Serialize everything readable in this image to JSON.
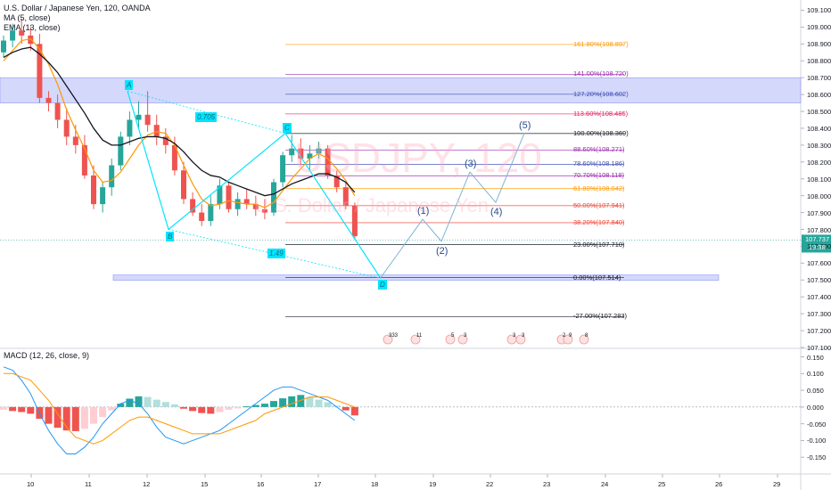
{
  "header": {
    "title": "U.S. Dollar / Japanese Yen, 120, OANDA",
    "ma": "MA (5, close)",
    "ema": "EMA (13, close)",
    "macd": "MACD (12, 26, close, 9)"
  },
  "watermark": {
    "symbol": "USDJPY, 120",
    "desc": "U.S. Dollar / Japanese Yen"
  },
  "colors": {
    "up": "#26a69a",
    "down": "#ef5350",
    "ma": "#ff9800",
    "ema": "#131722",
    "pattern": "#00e5ff",
    "projection": "#7fb3d5",
    "zone": "#b0b8f7",
    "macd_line": "#2196f3",
    "signal_line": "#ff9800"
  },
  "chart_data": [
    {
      "type": "candlestick",
      "y_axis": {
        "min": 107.1,
        "max": 109.15,
        "ticks": [
          "109.100",
          "109.000",
          "108.900",
          "108.800",
          "108.700",
          "108.600",
          "108.500",
          "108.400",
          "108.300",
          "108.200",
          "108.100",
          "108.000",
          "107.900",
          "107.800",
          "107.700",
          "107.600",
          "107.500",
          "107.400",
          "107.300",
          "107.200",
          "107.100"
        ]
      },
      "x_axis": {
        "tick_labels": [
          "10",
          "11",
          "12",
          "15",
          "16",
          "17",
          "18",
          "19",
          "22",
          "23",
          "24",
          "25",
          "26",
          "29"
        ]
      },
      "current_price": {
        "value": "107.737",
        "countdown": "19:38"
      },
      "candles": [
        [
          108.85,
          108.95,
          108.82,
          108.92
        ],
        [
          108.92,
          109.02,
          108.88,
          108.98
        ],
        [
          108.98,
          109.05,
          108.9,
          108.95
        ],
        [
          108.95,
          109.0,
          108.86,
          108.9
        ],
        [
          108.9,
          108.96,
          108.55,
          108.58
        ],
        [
          108.58,
          108.62,
          108.5,
          108.55
        ],
        [
          108.55,
          108.6,
          108.4,
          108.45
        ],
        [
          108.45,
          108.52,
          108.3,
          108.35
        ],
        [
          108.35,
          108.42,
          108.25,
          108.3
        ],
        [
          108.3,
          108.36,
          108.1,
          108.12
        ],
        [
          108.12,
          108.18,
          107.92,
          107.95
        ],
        [
          107.95,
          108.08,
          107.9,
          108.05
        ],
        [
          108.05,
          108.22,
          108.0,
          108.18
        ],
        [
          108.18,
          108.38,
          108.15,
          108.35
        ],
        [
          108.35,
          108.5,
          108.3,
          108.45
        ],
        [
          108.45,
          108.56,
          108.4,
          108.48
        ],
        [
          108.48,
          108.62,
          108.38,
          108.42
        ],
        [
          108.42,
          108.48,
          108.3,
          108.35
        ],
        [
          108.35,
          108.4,
          108.25,
          108.3
        ],
        [
          108.3,
          108.35,
          108.12,
          108.15
        ],
        [
          108.15,
          108.2,
          107.95,
          107.98
        ],
        [
          107.98,
          108.02,
          107.88,
          107.9
        ],
        [
          107.9,
          107.95,
          107.82,
          107.85
        ],
        [
          107.85,
          108.0,
          107.82,
          107.95
        ],
        [
          107.95,
          108.1,
          107.92,
          108.06
        ],
        [
          108.06,
          108.08,
          107.9,
          107.92
        ],
        [
          107.92,
          108.02,
          107.88,
          107.98
        ],
        [
          107.98,
          108.04,
          107.92,
          107.95
        ],
        [
          107.95,
          108.0,
          107.88,
          107.92
        ],
        [
          107.92,
          107.98,
          107.86,
          107.9
        ],
        [
          107.9,
          108.1,
          107.88,
          108.08
        ],
        [
          108.08,
          108.26,
          108.05,
          108.24
        ],
        [
          108.24,
          108.36,
          108.2,
          108.28
        ],
        [
          108.28,
          108.34,
          108.18,
          108.22
        ],
        [
          108.22,
          108.3,
          108.15,
          108.25
        ],
        [
          108.25,
          108.32,
          108.22,
          108.28
        ],
        [
          108.28,
          108.3,
          108.1,
          108.12
        ],
        [
          108.12,
          108.15,
          108.02,
          108.05
        ],
        [
          108.05,
          108.08,
          107.92,
          107.94
        ],
        [
          107.94,
          107.96,
          107.74,
          107.76
        ]
      ],
      "ma_values": [
        108.8,
        108.86,
        108.92,
        108.93,
        108.87,
        108.78,
        108.66,
        108.51,
        108.39,
        108.28,
        108.15,
        108.08,
        108.09,
        108.14,
        108.22,
        108.3,
        108.36,
        108.38,
        108.37,
        108.3,
        108.18,
        108.07,
        107.98,
        107.94,
        107.95,
        107.97,
        107.96,
        107.95,
        107.95,
        107.93,
        107.96,
        108.03,
        108.1,
        108.16,
        108.22,
        108.25,
        108.22,
        108.16,
        108.09,
        108.0
      ],
      "ema_values": [
        108.82,
        108.85,
        108.87,
        108.88,
        108.84,
        108.79,
        108.73,
        108.65,
        108.57,
        108.49,
        108.4,
        108.33,
        108.3,
        108.3,
        108.32,
        108.34,
        108.35,
        108.35,
        108.34,
        108.31,
        108.26,
        108.2,
        108.15,
        108.12,
        108.11,
        108.08,
        108.06,
        108.04,
        108.02,
        108.0,
        108.01,
        108.04,
        108.07,
        108.09,
        108.11,
        108.13,
        108.13,
        108.11,
        108.08,
        108.02
      ],
      "fibonacci_levels": [
        {
          "level": "161.80%(108.897)",
          "value": 108.897,
          "color": "#ff9800"
        },
        {
          "level": "141.00%(108.720)",
          "value": 108.72,
          "color": "#9c27b0"
        },
        {
          "level": "127.20%(108.602)",
          "value": 108.602,
          "color": "#3f51b5"
        },
        {
          "level": "113.60%(108.485)",
          "value": 108.485,
          "color": "#e91e63"
        },
        {
          "level": "100.00%(108.369)",
          "value": 108.369,
          "color": "#131722"
        },
        {
          "level": "88.60%(108.271)",
          "value": 108.271,
          "color": "#9c27b0"
        },
        {
          "level": "78.60%(108.186)",
          "value": 108.186,
          "color": "#3f51b5"
        },
        {
          "level": "70.70%(108.118)",
          "value": 108.118,
          "color": "#9c27b0"
        },
        {
          "level": "61.80%(108.042)",
          "value": 108.042,
          "color": "#ff9800"
        },
        {
          "level": "50.00%(107.941)",
          "value": 107.941,
          "color": "#f44336"
        },
        {
          "level": "38.20%(107.840)",
          "value": 107.84,
          "color": "#f44336"
        },
        {
          "level": "23.00%(107.710)",
          "value": 107.71,
          "color": "#131722"
        },
        {
          "level": "0.00%(107.514)",
          "value": 107.514,
          "color": "#131722"
        },
        {
          "level": "-27.00%(107.283)",
          "value": 107.283,
          "color": "#131722"
        }
      ],
      "zones": [
        {
          "from": 108.55,
          "to": 108.7
        },
        {
          "from": 107.5,
          "to": 107.53
        }
      ],
      "harmonic_points": [
        {
          "label": "A",
          "value": 108.62
        },
        {
          "label": "B",
          "value": 107.8
        },
        {
          "label": "C",
          "value": 108.37
        },
        {
          "label": "D",
          "value": 107.51
        }
      ],
      "harmonic_ratios": [
        "0.705",
        "1.49"
      ],
      "wave_labels": [
        "(1)",
        "(2)",
        "(3)",
        "(4)",
        "(5)"
      ],
      "event_badges": [
        "333",
        "11",
        "5",
        "3",
        "3",
        "3",
        "2",
        "9",
        "8"
      ]
    },
    {
      "type": "bar",
      "name": "MACD",
      "y_axis": {
        "min": -0.2,
        "max": 0.17,
        "ticks": [
          "0.150",
          "0.100",
          "0.050",
          "0.000",
          "-0.050",
          "-0.100",
          "-0.150"
        ]
      },
      "histogram": [
        -0.008,
        -0.012,
        -0.015,
        -0.02,
        -0.035,
        -0.05,
        -0.062,
        -0.07,
        -0.072,
        -0.065,
        -0.05,
        -0.03,
        -0.01,
        0.01,
        0.025,
        0.032,
        0.03,
        0.022,
        0.015,
        0.008,
        -0.005,
        -0.012,
        -0.018,
        -0.02,
        -0.015,
        -0.008,
        -0.004,
        0.002,
        0.006,
        0.01,
        0.018,
        0.026,
        0.032,
        0.036,
        0.03,
        0.022,
        0.014,
        0.004,
        -0.01,
        -0.025
      ],
      "macd": [
        0.12,
        0.11,
        0.08,
        0.04,
        -0.02,
        -0.07,
        -0.11,
        -0.14,
        -0.14,
        -0.12,
        -0.09,
        -0.05,
        -0.02,
        0.01,
        0.02,
        0.01,
        -0.02,
        -0.06,
        -0.09,
        -0.1,
        -0.11,
        -0.1,
        -0.09,
        -0.08,
        -0.07,
        -0.05,
        -0.03,
        -0.01,
        0.01,
        0.03,
        0.05,
        0.06,
        0.06,
        0.05,
        0.04,
        0.03,
        0.02,
        0.0,
        -0.02,
        -0.04
      ],
      "signal": [
        0.1,
        0.1,
        0.09,
        0.08,
        0.05,
        0.02,
        -0.02,
        -0.06,
        -0.09,
        -0.1,
        -0.11,
        -0.1,
        -0.08,
        -0.06,
        -0.04,
        -0.03,
        -0.03,
        -0.04,
        -0.05,
        -0.06,
        -0.07,
        -0.08,
        -0.08,
        -0.08,
        -0.08,
        -0.07,
        -0.06,
        -0.05,
        -0.04,
        -0.02,
        -0.01,
        0.0,
        0.01,
        0.02,
        0.03,
        0.03,
        0.03,
        0.02,
        0.01,
        0.0
      ]
    }
  ]
}
